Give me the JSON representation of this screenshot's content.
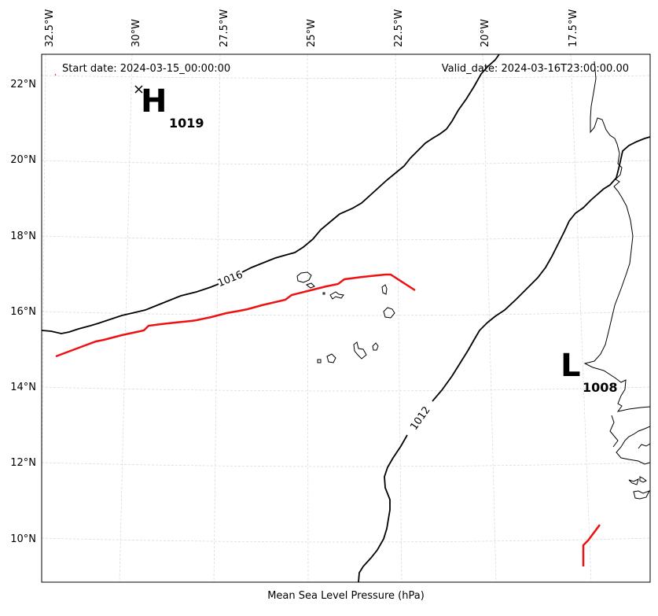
{
  "header": {
    "start_date": "Start date: 2024-03-15_00:00:00",
    "valid_date": "Valid_date: 2024-03-16T23:00:00.00"
  },
  "footer": {
    "caption": "Mean Sea Level Pressure (hPa)"
  },
  "axes": {
    "lon_ticks": [
      "32.5°W",
      "30°W",
      "27.5°W",
      "25°W",
      "22.5°W",
      "20°W",
      "17.5°W"
    ],
    "lat_ticks": [
      "22°N",
      "20°N",
      "18°N",
      "16°N",
      "14°N",
      "12°N",
      "10°N"
    ]
  },
  "pressure_centers": {
    "high": {
      "symbol": "H",
      "value": "1019"
    },
    "low": {
      "symbol": "L",
      "value": "1008"
    }
  },
  "isobars": {
    "north_label": "1016",
    "south_label": "1012"
  },
  "colors": {
    "isobar": "#000000",
    "storm_track": "#ee1111",
    "grid": "#d0d0d0",
    "coast": "#000000"
  },
  "center_marker_icon": "x-mark"
}
